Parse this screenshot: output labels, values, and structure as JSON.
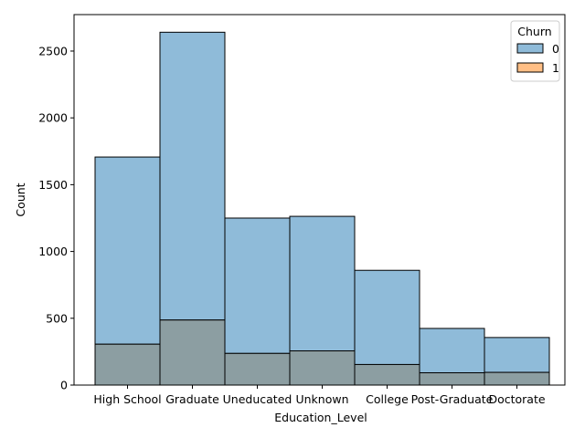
{
  "chart_data": {
    "type": "bar",
    "categories": [
      "High School",
      "Graduate",
      "Uneducated",
      "Unknown",
      "College",
      "Post-Graduate",
      "Doctorate"
    ],
    "series": [
      {
        "name": "0",
        "values": [
          1707,
          2641,
          1250,
          1263,
          859,
          424,
          356
        ],
        "color": "#1f77b4",
        "alpha": 0.5
      },
      {
        "name": "1",
        "values": [
          306,
          487,
          237,
          256,
          154,
          92,
          95
        ],
        "color": "#ff7f0e",
        "alpha": 0.5
      }
    ],
    "overlap_color": "#8c9ea2",
    "xlabel": "Education_Level",
    "ylabel": "Count",
    "ylim": [
      0,
      2773
    ],
    "yticks": [
      0,
      500,
      1000,
      1500,
      2000,
      2500
    ],
    "legend": {
      "title": "Churn",
      "placement": "top-right"
    },
    "grid": false
  }
}
